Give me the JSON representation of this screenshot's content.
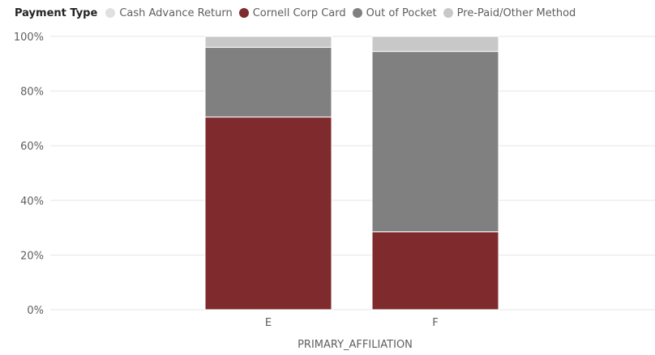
{
  "legend": {
    "title": "Payment Type",
    "items": [
      {
        "label": "Cash Advance Return",
        "color": "#e0e0e0"
      },
      {
        "label": "Cornell Corp Card",
        "color": "#7f2a2c"
      },
      {
        "label": "Out of Pocket",
        "color": "#808080"
      },
      {
        "label": "Pre-Paid/Other Method",
        "color": "#c8c8c8"
      }
    ]
  },
  "chart_data": {
    "type": "bar",
    "stacked": "percent",
    "categories": [
      "E",
      "F"
    ],
    "series": [
      {
        "name": "Cash Advance Return",
        "color": "#e0e0e0",
        "values": [
          0,
          0
        ]
      },
      {
        "name": "Cornell Corp Card",
        "color": "#7f2a2c",
        "values": [
          70.5,
          28.5
        ]
      },
      {
        "name": "Out of Pocket",
        "color": "#808080",
        "values": [
          25.5,
          66
        ]
      },
      {
        "name": "Pre-Paid/Other Method",
        "color": "#c8c8c8",
        "values": [
          4,
          5.5
        ]
      }
    ],
    "xlabel": "PRIMARY_AFFILIATION",
    "ylabel": "",
    "ylim": [
      0,
      100
    ],
    "yticks": [
      "0%",
      "20%",
      "40%",
      "60%",
      "80%",
      "100%"
    ],
    "grid": true,
    "legend_position": "top-left"
  }
}
